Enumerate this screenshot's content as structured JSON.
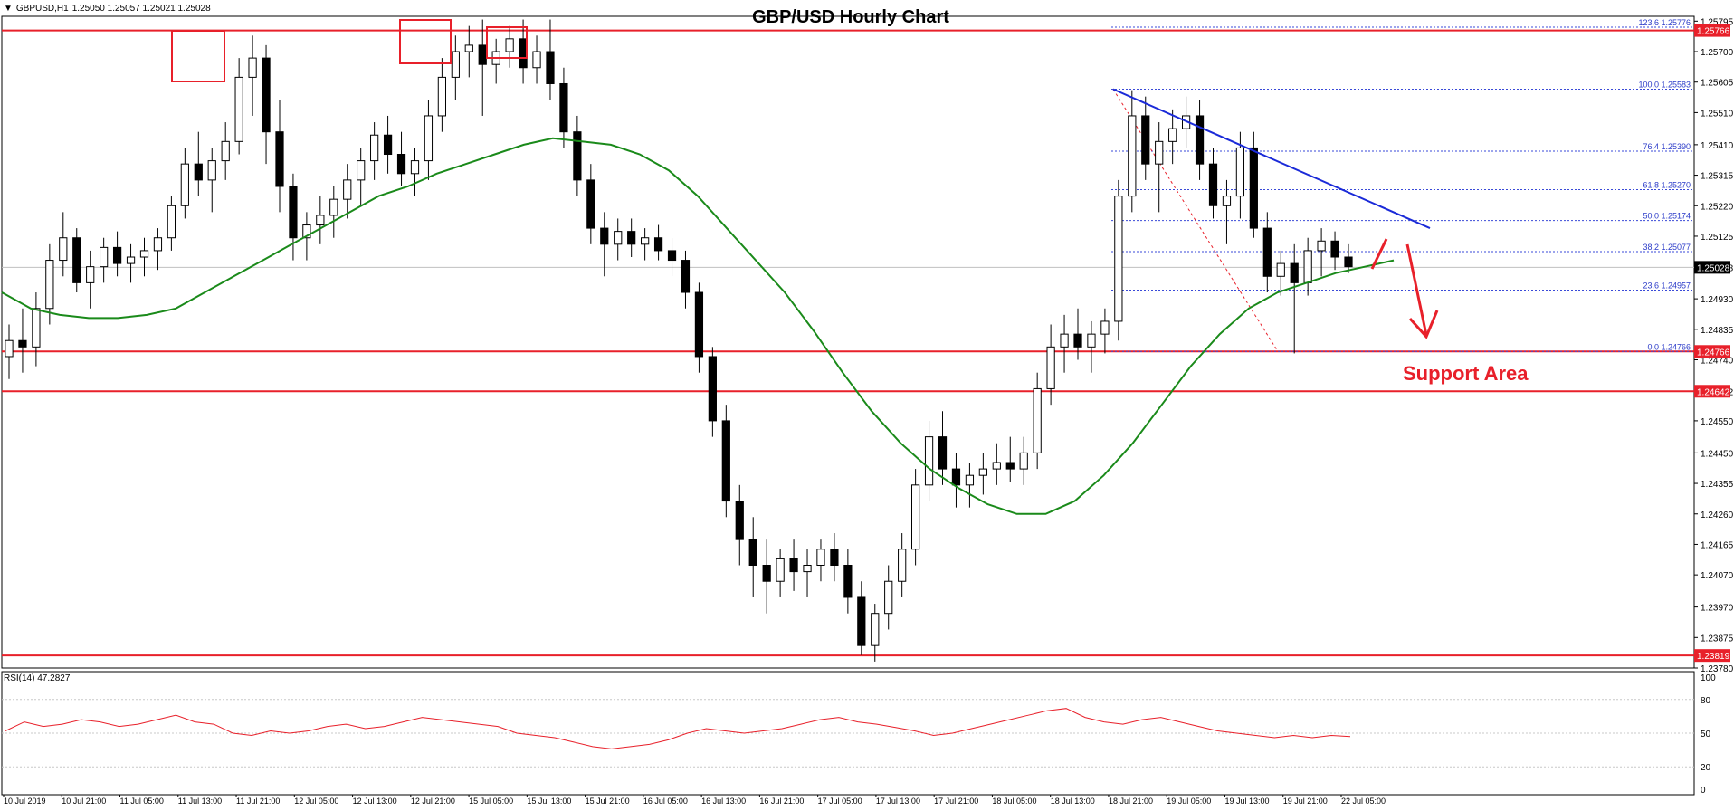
{
  "header": {
    "symbol": "GBPUSD,H1",
    "ohlc": "1.25050 1.25057 1.25021 1.25028"
  },
  "title": "GBP/USD Hourly Chart",
  "support_label": "Support Area",
  "rsi_label": "RSI(14) 47.2827",
  "colors": {
    "resistance": "#e8202a",
    "ma": "#1a8a1a",
    "trendline": "#1a2ad8",
    "fib": "#3a4ad8",
    "rsi": "#e8202a",
    "candle_up": "#ffffff",
    "candle_down": "#000000"
  },
  "chart_data": {
    "type": "candlestick",
    "y_ticks": [
      "1.25795",
      "1.25700",
      "1.25605",
      "1.25510",
      "1.25410",
      "1.25315",
      "1.25220",
      "1.25125",
      "1.25028",
      "1.24930",
      "1.24835",
      "1.24740",
      "1.24642",
      "1.24550",
      "1.24450",
      "1.24355",
      "1.24260",
      "1.24165",
      "1.24070",
      "1.23970",
      "1.23875",
      "1.23780"
    ],
    "price_tags": [
      {
        "label": "1.25766",
        "value": 1.25766
      },
      {
        "label": "1.25028",
        "value": 1.25028
      },
      {
        "label": "1.24766",
        "value": 1.24766
      },
      {
        "label": "1.24642",
        "value": 1.24642
      },
      {
        "label": "1.23819",
        "value": 1.23819
      }
    ],
    "x_ticks": [
      "10 Jul 2019",
      "10 Jul 21:00",
      "11 Jul 05:00",
      "11 Jul 13:00",
      "11 Jul 21:00",
      "12 Jul 05:00",
      "12 Jul 13:00",
      "12 Jul 21:00",
      "15 Jul 05:00",
      "15 Jul 13:00",
      "15 Jul 21:00",
      "16 Jul 05:00",
      "16 Jul 13:00",
      "16 Jul 21:00",
      "17 Jul 05:00",
      "17 Jul 13:00",
      "17 Jul 21:00",
      "18 Jul 05:00",
      "18 Jul 13:00",
      "18 Jul 21:00",
      "19 Jul 05:00",
      "19 Jul 13:00",
      "19 Jul 21:00",
      "22 Jul 05:00"
    ],
    "horizontal_lines": [
      1.25766,
      1.24766,
      1.24642,
      1.23819
    ],
    "fib_levels": [
      {
        "label": "123.6 1.25776",
        "value": 1.25776
      },
      {
        "label": "100.0 1.25583",
        "value": 1.25583
      },
      {
        "label": "76.4 1.25390",
        "value": 1.2539
      },
      {
        "label": "61.8 1.25270",
        "value": 1.2527
      },
      {
        "label": "50.0 1.25174",
        "value": 1.25174
      },
      {
        "label": "38.2 1.25077",
        "value": 1.25077
      },
      {
        "label": "23.6 1.24957",
        "value": 1.24957
      },
      {
        "label": "0.0 1.24766",
        "value": 1.24766
      }
    ],
    "candles": [
      [
        1.2475,
        1.2485,
        1.2468,
        1.248
      ],
      [
        1.248,
        1.249,
        1.247,
        1.2478
      ],
      [
        1.2478,
        1.2495,
        1.2472,
        1.249
      ],
      [
        1.249,
        1.251,
        1.2485,
        1.2505
      ],
      [
        1.2505,
        1.252,
        1.25,
        1.2512
      ],
      [
        1.2512,
        1.2515,
        1.2495,
        1.2498
      ],
      [
        1.2498,
        1.2508,
        1.249,
        1.2503
      ],
      [
        1.2503,
        1.2512,
        1.2498,
        1.2509
      ],
      [
        1.2509,
        1.2514,
        1.25,
        1.2504
      ],
      [
        1.2504,
        1.251,
        1.2498,
        1.2506
      ],
      [
        1.2506,
        1.2512,
        1.25,
        1.2508
      ],
      [
        1.2508,
        1.2515,
        1.2502,
        1.2512
      ],
      [
        1.2512,
        1.2525,
        1.2508,
        1.2522
      ],
      [
        1.2522,
        1.254,
        1.2518,
        1.2535
      ],
      [
        1.2535,
        1.2545,
        1.2525,
        1.253
      ],
      [
        1.253,
        1.254,
        1.252,
        1.2536
      ],
      [
        1.2536,
        1.2548,
        1.253,
        1.2542
      ],
      [
        1.2542,
        1.2568,
        1.2538,
        1.2562
      ],
      [
        1.2562,
        1.2575,
        1.255,
        1.2568
      ],
      [
        1.2568,
        1.2572,
        1.2535,
        1.2545
      ],
      [
        1.2545,
        1.2555,
        1.252,
        1.2528
      ],
      [
        1.2528,
        1.2532,
        1.2505,
        1.2512
      ],
      [
        1.2512,
        1.252,
        1.2505,
        1.2516
      ],
      [
        1.2516,
        1.2525,
        1.251,
        1.2519
      ],
      [
        1.2519,
        1.2528,
        1.2512,
        1.2524
      ],
      [
        1.2524,
        1.2535,
        1.2518,
        1.253
      ],
      [
        1.253,
        1.254,
        1.2522,
        1.2536
      ],
      [
        1.2536,
        1.2548,
        1.253,
        1.2544
      ],
      [
        1.2544,
        1.255,
        1.2532,
        1.2538
      ],
      [
        1.2538,
        1.2545,
        1.2528,
        1.2532
      ],
      [
        1.2532,
        1.254,
        1.2525,
        1.2536
      ],
      [
        1.2536,
        1.2555,
        1.253,
        1.255
      ],
      [
        1.255,
        1.2568,
        1.2545,
        1.2562
      ],
      [
        1.2562,
        1.2575,
        1.2555,
        1.257
      ],
      [
        1.257,
        1.2578,
        1.2562,
        1.2572
      ],
      [
        1.2572,
        1.258,
        1.255,
        1.2566
      ],
      [
        1.2566,
        1.2574,
        1.256,
        1.257
      ],
      [
        1.257,
        1.2578,
        1.2565,
        1.2574
      ],
      [
        1.2574,
        1.258,
        1.256,
        1.2565
      ],
      [
        1.2565,
        1.2575,
        1.256,
        1.257
      ],
      [
        1.257,
        1.258,
        1.2555,
        1.256
      ],
      [
        1.256,
        1.2565,
        1.254,
        1.2545
      ],
      [
        1.2545,
        1.255,
        1.2525,
        1.253
      ],
      [
        1.253,
        1.2535,
        1.251,
        1.2515
      ],
      [
        1.2515,
        1.252,
        1.25,
        1.251
      ],
      [
        1.251,
        1.2518,
        1.2505,
        1.2514
      ],
      [
        1.2514,
        1.2518,
        1.2506,
        1.251
      ],
      [
        1.251,
        1.2515,
        1.2505,
        1.2512
      ],
      [
        1.2512,
        1.2516,
        1.2505,
        1.2508
      ],
      [
        1.2508,
        1.2512,
        1.25,
        1.2505
      ],
      [
        1.2505,
        1.2508,
        1.249,
        1.2495
      ],
      [
        1.2495,
        1.2498,
        1.247,
        1.2475
      ],
      [
        1.2475,
        1.2478,
        1.245,
        1.2455
      ],
      [
        1.2455,
        1.246,
        1.2425,
        1.243
      ],
      [
        1.243,
        1.2435,
        1.241,
        1.2418
      ],
      [
        1.2418,
        1.2425,
        1.24,
        1.241
      ],
      [
        1.241,
        1.2418,
        1.2395,
        1.2405
      ],
      [
        1.2405,
        1.2415,
        1.24,
        1.2412
      ],
      [
        1.2412,
        1.2418,
        1.2402,
        1.2408
      ],
      [
        1.2408,
        1.2415,
        1.24,
        1.241
      ],
      [
        1.241,
        1.2418,
        1.2405,
        1.2415
      ],
      [
        1.2415,
        1.242,
        1.2405,
        1.241
      ],
      [
        1.241,
        1.2415,
        1.2395,
        1.24
      ],
      [
        1.24,
        1.2405,
        1.2382,
        1.2385
      ],
      [
        1.2385,
        1.2398,
        1.238,
        1.2395
      ],
      [
        1.2395,
        1.241,
        1.239,
        1.2405
      ],
      [
        1.2405,
        1.242,
        1.24,
        1.2415
      ],
      [
        1.2415,
        1.244,
        1.241,
        1.2435
      ],
      [
        1.2435,
        1.2455,
        1.243,
        1.245
      ],
      [
        1.245,
        1.2458,
        1.2435,
        1.244
      ],
      [
        1.244,
        1.2445,
        1.2428,
        1.2435
      ],
      [
        1.2435,
        1.2442,
        1.2428,
        1.2438
      ],
      [
        1.2438,
        1.2445,
        1.2432,
        1.244
      ],
      [
        1.244,
        1.2448,
        1.2435,
        1.2442
      ],
      [
        1.2442,
        1.245,
        1.2436,
        1.244
      ],
      [
        1.244,
        1.245,
        1.2435,
        1.2445
      ],
      [
        1.2445,
        1.247,
        1.244,
        1.2465
      ],
      [
        1.2465,
        1.2485,
        1.246,
        1.2478
      ],
      [
        1.2478,
        1.2488,
        1.247,
        1.2482
      ],
      [
        1.2482,
        1.249,
        1.2474,
        1.2478
      ],
      [
        1.2478,
        1.2486,
        1.247,
        1.2482
      ],
      [
        1.2482,
        1.249,
        1.2476,
        1.2486
      ],
      [
        1.2486,
        1.253,
        1.248,
        1.2525
      ],
      [
        1.2525,
        1.2558,
        1.252,
        1.255
      ],
      [
        1.255,
        1.2556,
        1.253,
        1.2535
      ],
      [
        1.2535,
        1.2548,
        1.252,
        1.2542
      ],
      [
        1.2542,
        1.2552,
        1.2535,
        1.2546
      ],
      [
        1.2546,
        1.2556,
        1.254,
        1.255
      ],
      [
        1.255,
        1.2555,
        1.253,
        1.2535
      ],
      [
        1.2535,
        1.254,
        1.2518,
        1.2522
      ],
      [
        1.2522,
        1.253,
        1.251,
        1.2525
      ],
      [
        1.2525,
        1.2545,
        1.2518,
        1.254
      ],
      [
        1.254,
        1.2545,
        1.2512,
        1.2515
      ],
      [
        1.2515,
        1.252,
        1.2495,
        1.25
      ],
      [
        1.25,
        1.2508,
        1.2494,
        1.2504
      ],
      [
        1.2504,
        1.251,
        1.2476,
        1.2498
      ],
      [
        1.2498,
        1.2512,
        1.2494,
        1.2508
      ],
      [
        1.2508,
        1.2515,
        1.25,
        1.2511
      ],
      [
        1.2511,
        1.2514,
        1.2502,
        1.2506
      ],
      [
        1.2506,
        1.251,
        1.2501,
        1.2503
      ]
    ],
    "ma": [
      1.2495,
      1.249,
      1.2488,
      1.2487,
      1.2487,
      1.2488,
      1.249,
      1.2495,
      1.25,
      1.2505,
      1.251,
      1.2515,
      1.252,
      1.2525,
      1.2528,
      1.2532,
      1.2535,
      1.2538,
      1.2541,
      1.2543,
      1.2542,
      1.2541,
      1.2538,
      1.2533,
      1.2525,
      1.2515,
      1.2505,
      1.2495,
      1.2483,
      1.247,
      1.2458,
      1.2448,
      1.244,
      1.2434,
      1.2429,
      1.2426,
      1.2426,
      1.243,
      1.2438,
      1.2448,
      1.246,
      1.2472,
      1.2482,
      1.249,
      1.2495,
      1.2498,
      1.2501,
      1.2503,
      1.2505
    ],
    "rsi": {
      "ticks": [
        "100",
        "80",
        "50",
        "20",
        "0"
      ],
      "values": [
        52,
        60,
        56,
        58,
        62,
        60,
        56,
        58,
        62,
        66,
        60,
        58,
        50,
        48,
        52,
        50,
        52,
        56,
        58,
        54,
        56,
        60,
        64,
        62,
        60,
        58,
        56,
        50,
        48,
        46,
        42,
        38,
        36,
        38,
        40,
        44,
        50,
        54,
        52,
        50,
        52,
        54,
        58,
        62,
        64,
        60,
        58,
        55,
        52,
        48,
        50,
        54,
        58,
        62,
        66,
        70,
        72,
        64,
        60,
        58,
        62,
        64,
        60,
        56,
        52,
        50,
        48,
        46,
        48,
        46,
        48,
        47
      ]
    }
  }
}
